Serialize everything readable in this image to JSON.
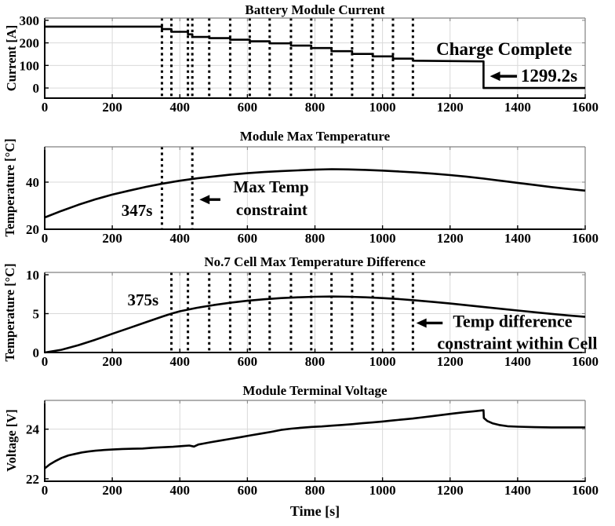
{
  "figure": {
    "background": "#ffffff",
    "line_color": "#000000",
    "grid_color": "#d9d9d9",
    "frame_color": "#808080",
    "axis_color": "#000000"
  },
  "chart_data": [
    {
      "type": "line",
      "title": "Battery Module Current",
      "ylabel": "Current [A]",
      "xlim": [
        0,
        1600
      ],
      "ylim": [
        -45,
        310
      ],
      "xticks": [
        0,
        200,
        400,
        600,
        800,
        1000,
        1200,
        1400,
        1600
      ],
      "yticks": [
        0,
        100,
        200,
        300
      ],
      "grid": true,
      "stage_boundaries_s": [
        347,
        375,
        424,
        437,
        487,
        549,
        607,
        666,
        729,
        789,
        849,
        910,
        971,
        1031,
        1090
      ],
      "charge_complete_time_s": 1299.2,
      "series": [
        [
          0,
          272
        ],
        [
          347,
          272
        ],
        [
          347,
          261
        ],
        [
          375,
          261
        ],
        [
          375,
          249
        ],
        [
          424,
          249
        ],
        [
          424,
          238
        ],
        [
          437,
          238
        ],
        [
          437,
          226
        ],
        [
          487,
          226
        ],
        [
          487,
          221
        ],
        [
          549,
          221
        ],
        [
          549,
          214
        ],
        [
          607,
          214
        ],
        [
          607,
          207
        ],
        [
          666,
          207
        ],
        [
          666,
          198
        ],
        [
          729,
          198
        ],
        [
          729,
          188
        ],
        [
          789,
          188
        ],
        [
          789,
          177
        ],
        [
          849,
          177
        ],
        [
          849,
          163
        ],
        [
          910,
          163
        ],
        [
          910,
          151
        ],
        [
          971,
          151
        ],
        [
          971,
          140
        ],
        [
          1031,
          140
        ],
        [
          1031,
          130
        ],
        [
          1090,
          130
        ],
        [
          1090,
          121
        ],
        [
          1299,
          118
        ],
        [
          1299,
          0
        ],
        [
          1600,
          0
        ]
      ],
      "annotations": [
        {
          "text": "Charge Complete",
          "x": 1360,
          "y": 171,
          "size": "large"
        },
        {
          "text": "1299.2s",
          "x": 1493,
          "y": 52,
          "size": "large"
        }
      ],
      "arrows": [
        {
          "x_tip": 1318,
          "x_tail": 1398,
          "y": 52
        }
      ]
    },
    {
      "type": "line",
      "title": "Module Max Temperature",
      "ylabel": "Temperature [°C]",
      "xlim": [
        0,
        1600
      ],
      "ylim": [
        20,
        55
      ],
      "xticks": [
        0,
        200,
        400,
        600,
        800,
        1000,
        1200,
        1400,
        1600
      ],
      "yticks": [
        20,
        40
      ],
      "grid": true,
      "stage_boundaries_s": [
        347,
        437
      ],
      "constraint_time_s": 347,
      "series": [
        [
          0,
          25
        ],
        [
          50,
          27.8
        ],
        [
          100,
          30.4
        ],
        [
          150,
          32.7
        ],
        [
          200,
          34.7
        ],
        [
          250,
          36.4
        ],
        [
          300,
          38
        ],
        [
          350,
          39.4
        ],
        [
          400,
          40.6
        ],
        [
          450,
          41.6
        ],
        [
          500,
          42.4
        ],
        [
          550,
          43.2
        ],
        [
          600,
          43.8
        ],
        [
          650,
          44.3
        ],
        [
          700,
          44.7
        ],
        [
          750,
          45
        ],
        [
          800,
          45.3
        ],
        [
          850,
          45.5
        ],
        [
          900,
          45.4
        ],
        [
          950,
          45.2
        ],
        [
          1000,
          44.9
        ],
        [
          1050,
          44.5
        ],
        [
          1100,
          44.1
        ],
        [
          1150,
          43.6
        ],
        [
          1200,
          43
        ],
        [
          1250,
          42.3
        ],
        [
          1300,
          41.5
        ],
        [
          1350,
          40.6
        ],
        [
          1400,
          39.7
        ],
        [
          1450,
          38.8
        ],
        [
          1500,
          37.9
        ],
        [
          1550,
          37.1
        ],
        [
          1600,
          36.4
        ]
      ],
      "annotations": [
        {
          "text": "347s",
          "x": 273,
          "y": 28,
          "size": "med"
        },
        {
          "text": "Max Temp",
          "x": 670,
          "y": 37.9,
          "size": "med"
        },
        {
          "text": "constraint",
          "x": 672,
          "y": 28.4,
          "size": "med"
        }
      ],
      "arrows": [
        {
          "x_tip": 458,
          "x_tail": 520,
          "y": 32.6
        }
      ]
    },
    {
      "type": "line",
      "title": "No.7 Cell Max Temperature Difference",
      "ylabel": "Temperature [°C]",
      "xlim": [
        0,
        1600
      ],
      "ylim": [
        0,
        10.3
      ],
      "xticks": [
        0,
        200,
        400,
        600,
        800,
        1000,
        1200,
        1400,
        1600
      ],
      "yticks": [
        0,
        5,
        10
      ],
      "grid": true,
      "stage_boundaries_s": [
        375,
        424,
        487,
        549,
        607,
        666,
        729,
        789,
        849,
        910,
        971,
        1031,
        1090
      ],
      "constraint_time_s": 375,
      "series": [
        [
          0,
          0
        ],
        [
          50,
          0.35
        ],
        [
          100,
          0.95
        ],
        [
          150,
          1.65
        ],
        [
          200,
          2.4
        ],
        [
          250,
          3.15
        ],
        [
          300,
          3.9
        ],
        [
          350,
          4.65
        ],
        [
          375,
          5
        ],
        [
          400,
          5.3
        ],
        [
          450,
          5.75
        ],
        [
          500,
          6.1
        ],
        [
          550,
          6.4
        ],
        [
          600,
          6.65
        ],
        [
          650,
          6.85
        ],
        [
          700,
          7
        ],
        [
          750,
          7.1
        ],
        [
          800,
          7.17
        ],
        [
          850,
          7.2
        ],
        [
          900,
          7.17
        ],
        [
          950,
          7.1
        ],
        [
          1000,
          7
        ],
        [
          1050,
          6.87
        ],
        [
          1100,
          6.7
        ],
        [
          1150,
          6.5
        ],
        [
          1200,
          6.3
        ],
        [
          1250,
          6.08
        ],
        [
          1300,
          5.85
        ],
        [
          1350,
          5.62
        ],
        [
          1400,
          5.4
        ],
        [
          1450,
          5.18
        ],
        [
          1500,
          4.97
        ],
        [
          1550,
          4.77
        ],
        [
          1600,
          4.58
        ]
      ],
      "annotations": [
        {
          "text": "375s",
          "x": 291,
          "y": 6.8,
          "size": "med"
        },
        {
          "text": "Temp difference",
          "x": 1385,
          "y": 4.0,
          "size": "med2"
        },
        {
          "text": "constraint within Cell",
          "x": 1399,
          "y": 1.26,
          "size": "med2"
        }
      ],
      "arrows": [
        {
          "x_tip": 1100,
          "x_tail": 1178,
          "y": 3.79
        }
      ]
    },
    {
      "type": "line",
      "title": "Module Terminal Voltage",
      "ylabel": "Voltage [V]",
      "xlabel": "Time [s]",
      "xlim": [
        0,
        1600
      ],
      "ylim": [
        21.9,
        25.16
      ],
      "xticks": [
        0,
        200,
        400,
        600,
        800,
        1000,
        1200,
        1400,
        1600
      ],
      "yticks": [
        22,
        24
      ],
      "grid": true,
      "series": [
        [
          0,
          22.42
        ],
        [
          15,
          22.58
        ],
        [
          30,
          22.7
        ],
        [
          50,
          22.84
        ],
        [
          70,
          22.94
        ],
        [
          90,
          23.0
        ],
        [
          110,
          23.06
        ],
        [
          130,
          23.1
        ],
        [
          150,
          23.13
        ],
        [
          175,
          23.16
        ],
        [
          200,
          23.18
        ],
        [
          230,
          23.2
        ],
        [
          260,
          23.21
        ],
        [
          290,
          23.22
        ],
        [
          320,
          23.25
        ],
        [
          350,
          23.27
        ],
        [
          380,
          23.29
        ],
        [
          410,
          23.32
        ],
        [
          428,
          23.34
        ],
        [
          442,
          23.3
        ],
        [
          455,
          23.38
        ],
        [
          470,
          23.42
        ],
        [
          490,
          23.47
        ],
        [
          520,
          23.54
        ],
        [
          550,
          23.61
        ],
        [
          580,
          23.68
        ],
        [
          610,
          23.75
        ],
        [
          640,
          23.82
        ],
        [
          670,
          23.89
        ],
        [
          700,
          23.97
        ],
        [
          730,
          24.02
        ],
        [
          760,
          24.06
        ],
        [
          790,
          24.09
        ],
        [
          820,
          24.11
        ],
        [
          850,
          24.14
        ],
        [
          880,
          24.17
        ],
        [
          910,
          24.2
        ],
        [
          940,
          24.24
        ],
        [
          970,
          24.27
        ],
        [
          1000,
          24.31
        ],
        [
          1030,
          24.35
        ],
        [
          1060,
          24.39
        ],
        [
          1090,
          24.43
        ],
        [
          1120,
          24.48
        ],
        [
          1150,
          24.53
        ],
        [
          1180,
          24.58
        ],
        [
          1210,
          24.63
        ],
        [
          1240,
          24.68
        ],
        [
          1270,
          24.72
        ],
        [
          1299,
          24.76
        ],
        [
          1300,
          24.45
        ],
        [
          1310,
          24.33
        ],
        [
          1325,
          24.24
        ],
        [
          1345,
          24.17
        ],
        [
          1370,
          24.12
        ],
        [
          1400,
          24.1
        ],
        [
          1450,
          24.08
        ],
        [
          1500,
          24.07
        ],
        [
          1600,
          24.07
        ]
      ],
      "annotations": [],
      "arrows": []
    }
  ]
}
